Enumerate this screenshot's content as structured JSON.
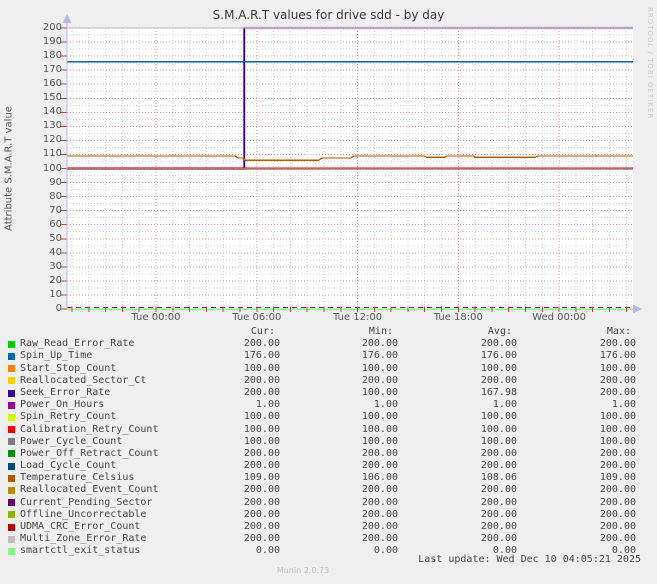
{
  "title": "S.M.A.R.T values for drive sdd - by day",
  "watermark": "RRDTOOL / TOBI OETIKER",
  "footer": {
    "last_update": "Last update: Wed Dec 10 04:05:21 2025",
    "version": "Munin 2.0.73"
  },
  "legend": {
    "headers": [
      "Cur:",
      "Min:",
      "Avg:",
      "Max:"
    ]
  },
  "chart_data": {
    "type": "line",
    "title": "S.M.A.R.T values for drive sdd - by day",
    "ylabel": "Attribute S.M.A.R.T value",
    "ylim": [
      0,
      200
    ],
    "y_tick_step": 10,
    "x_range_hours": [
      -5.3,
      28.4
    ],
    "x_ticks": [
      {
        "label": "Tue 00:00",
        "hour": 0
      },
      {
        "label": "Tue 06:00",
        "hour": 6
      },
      {
        "label": "Tue 12:00",
        "hour": 12
      },
      {
        "label": "Tue 18:00",
        "hour": 18
      },
      {
        "label": "Wed 00:00",
        "hour": 24
      }
    ],
    "grid": {
      "h_minor_step": 5,
      "h_major_step": 10,
      "v_minor_hours": 1,
      "v_major_hours": 6
    },
    "legend_position": "bottom",
    "colors": {
      "grid_major": "#e39494",
      "grid_minor": "#d4d4d4",
      "axis": "#b3b9e8",
      "tick": "#c84040"
    },
    "series": [
      {
        "name": "Raw_Read_Error_Rate",
        "color": "#00CC00",
        "cur": "200.00",
        "min": "200.00",
        "avg": "200.00",
        "max": "200.00"
      },
      {
        "name": "Spin_Up_Time",
        "color": "#0066B3",
        "cur": "176.00",
        "min": "176.00",
        "avg": "176.00",
        "max": "176.00"
      },
      {
        "name": "Start_Stop_Count",
        "color": "#FF8000",
        "cur": "100.00",
        "min": "100.00",
        "avg": "100.00",
        "max": "100.00"
      },
      {
        "name": "Reallocated_Sector_Ct",
        "color": "#FFCC00",
        "cur": "200.00",
        "min": "200.00",
        "avg": "200.00",
        "max": "200.00"
      },
      {
        "name": "Seek_Error_Rate",
        "color": "#330099",
        "cur": "200.00",
        "min": "100.00",
        "avg": "167.98",
        "max": "200.00"
      },
      {
        "name": "Power_On_Hours",
        "color": "#990099",
        "cur": "1.00",
        "min": "1.00",
        "avg": "1.00",
        "max": "1.00"
      },
      {
        "name": "Spin_Retry_Count",
        "color": "#CCFF00",
        "cur": "100.00",
        "min": "100.00",
        "avg": "100.00",
        "max": "100.00"
      },
      {
        "name": "Calibration_Retry_Count",
        "color": "#FF0000",
        "cur": "100.00",
        "min": "100.00",
        "avg": "100.00",
        "max": "100.00"
      },
      {
        "name": "Power_Cycle_Count",
        "color": "#808080",
        "cur": "100.00",
        "min": "100.00",
        "avg": "100.00",
        "max": "100.00"
      },
      {
        "name": "Power_Off_Retract_Count",
        "color": "#008F00",
        "cur": "200.00",
        "min": "200.00",
        "avg": "200.00",
        "max": "200.00"
      },
      {
        "name": "Load_Cycle_Count",
        "color": "#00487D",
        "cur": "200.00",
        "min": "200.00",
        "avg": "200.00",
        "max": "200.00"
      },
      {
        "name": "Temperature_Celsius",
        "color": "#B35A00",
        "cur": "109.00",
        "min": "106.00",
        "avg": "108.06",
        "max": "109.00"
      },
      {
        "name": "Reallocated_Event_Count",
        "color": "#B38F00",
        "cur": "200.00",
        "min": "200.00",
        "avg": "200.00",
        "max": "200.00"
      },
      {
        "name": "Current_Pending_Sector",
        "color": "#6B006B",
        "cur": "200.00",
        "min": "200.00",
        "avg": "200.00",
        "max": "200.00"
      },
      {
        "name": "Offline_Uncorrectable",
        "color": "#8FB300",
        "cur": "200.00",
        "min": "200.00",
        "avg": "200.00",
        "max": "200.00"
      },
      {
        "name": "UDMA_CRC_Error_Count",
        "color": "#B30000",
        "cur": "200.00",
        "min": "200.00",
        "avg": "200.00",
        "max": "200.00"
      },
      {
        "name": "Multi_Zone_Error_Rate",
        "color": "#BEBEBE",
        "cur": "200.00",
        "min": "200.00",
        "avg": "200.00",
        "max": "200.00"
      },
      {
        "name": "smartctl_exit_status",
        "color": "#80FF80",
        "cur": "0.00",
        "min": "0.00",
        "avg": "0.00",
        "max": "0.00"
      }
    ],
    "plot_lines": [
      {
        "series": "Seek_Error_Rate",
        "color": "#330099",
        "halo": "#a99bdc",
        "points": [
          [
            -5.3,
            100
          ],
          [
            5.25,
            100
          ],
          [
            5.25,
            200
          ],
          [
            28.4,
            200
          ]
        ]
      },
      {
        "series": "value_100_group",
        "color": "#808080",
        "underlay": "#FF0000",
        "points": [
          [
            -5.3,
            100
          ],
          [
            28.4,
            100
          ]
        ]
      },
      {
        "series": "value_200_group",
        "color": "#BEBEBE",
        "points": [
          [
            -5.3,
            200
          ],
          [
            28.4,
            200
          ]
        ]
      },
      {
        "series": "Spin_Up_Time",
        "color": "#0066B3",
        "points": [
          [
            -5.3,
            176
          ],
          [
            28.4,
            176
          ]
        ]
      },
      {
        "series": "Temperature_Celsius",
        "color": "#B35A00",
        "points": [
          [
            -5.3,
            109
          ],
          [
            4.7,
            109
          ],
          [
            4.9,
            107.5
          ],
          [
            5.2,
            107.5
          ],
          [
            5.3,
            106
          ],
          [
            9.7,
            106
          ],
          [
            9.9,
            107.5
          ],
          [
            11.6,
            107.5
          ],
          [
            11.8,
            109
          ],
          [
            16.0,
            109
          ],
          [
            16.1,
            108
          ],
          [
            17.2,
            108
          ],
          [
            17.3,
            109
          ],
          [
            18.9,
            109
          ],
          [
            19.0,
            108
          ],
          [
            22.6,
            108
          ],
          [
            22.7,
            109
          ],
          [
            28.4,
            109
          ]
        ]
      },
      {
        "series": "smartctl_exit_status",
        "color": "#80FF80",
        "width": 1.5,
        "points": [
          [
            -5.3,
            0
          ],
          [
            28.4,
            0
          ]
        ]
      },
      {
        "series": "Power_On_Hours",
        "color": "#990099",
        "dash": "5,4",
        "width": 1.2,
        "points": [
          [
            -5.3,
            1
          ],
          [
            28.4,
            1
          ]
        ]
      }
    ]
  }
}
